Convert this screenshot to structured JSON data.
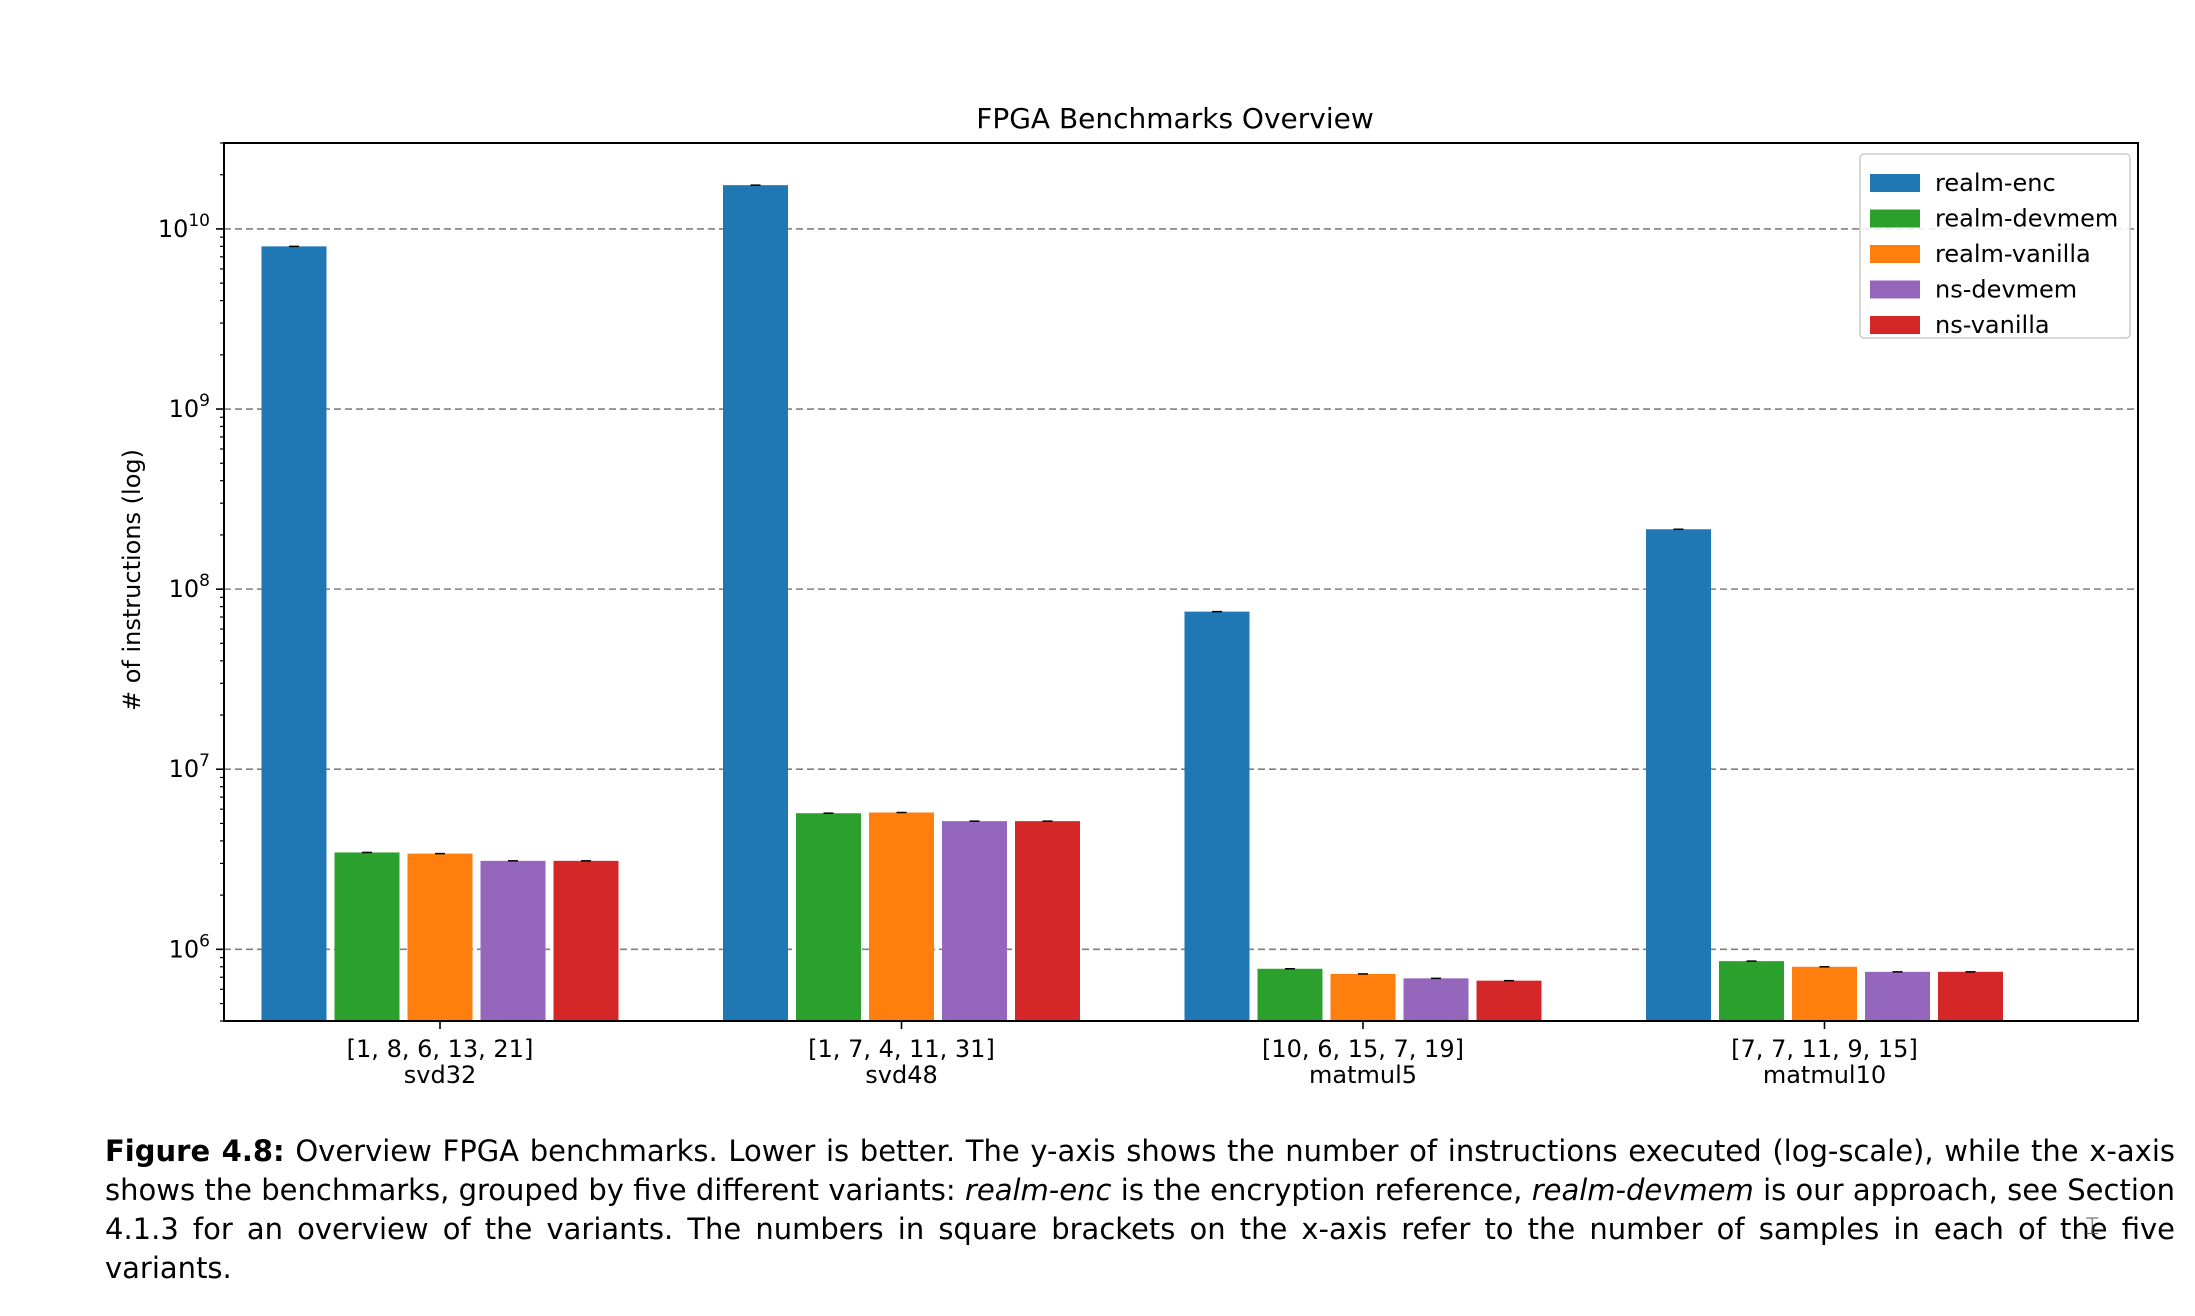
{
  "chart_data": {
    "type": "bar",
    "title": "FPGA Benchmarks Overview",
    "ylabel": "# of instructions (log)",
    "xlabel": "",
    "yscale": "log",
    "ylim": [
      400000,
      30000000000
    ],
    "grid": "y-major dashed",
    "legend_position": "top-right",
    "y_ticks": [
      {
        "value": 1000000,
        "base": "10",
        "exp": "6"
      },
      {
        "value": 10000000,
        "base": "10",
        "exp": "7"
      },
      {
        "value": 100000000,
        "base": "10",
        "exp": "8"
      },
      {
        "value": 1000000000,
        "base": "10",
        "exp": "9"
      },
      {
        "value": 10000000000,
        "base": "10",
        "exp": "10"
      }
    ],
    "categories": [
      "svd32",
      "svd48",
      "matmul5",
      "matmul10"
    ],
    "sample_counts": [
      "[1, 8, 6, 13, 21]",
      "[1, 7, 4, 11, 31]",
      "[10, 6, 15, 7, 19]",
      "[7, 7, 11, 9, 15]"
    ],
    "series": [
      {
        "name": "realm-enc",
        "color": "#1f77b4",
        "values": [
          8000000000,
          17500000000,
          75000000,
          215000000
        ]
      },
      {
        "name": "realm-devmem",
        "color": "#2ca02c",
        "values": [
          3450000,
          5700000,
          780000,
          860000
        ]
      },
      {
        "name": "realm-vanilla",
        "color": "#ff7f0e",
        "values": [
          3400000,
          5750000,
          730000,
          800000
        ]
      },
      {
        "name": "ns-devmem",
        "color": "#9467bd",
        "values": [
          3100000,
          5150000,
          690000,
          750000
        ]
      },
      {
        "name": "ns-vanilla",
        "color": "#d62728",
        "values": [
          3100000,
          5150000,
          670000,
          750000
        ]
      }
    ]
  },
  "caption": {
    "label": "Figure 4.8:",
    "text_1": " Overview FPGA benchmarks. Lower is better. The y-axis shows the number of instructions executed (log-scale), while the x-axis shows the benchmarks, grouped by five different variants: ",
    "variant_enc": "realm-enc",
    "text_2": " is the encryption reference, ",
    "variant_devmem": "realm-devmem",
    "text_3": " is our approach, see Section 4.1.3 for an overview of the variants. The numbers in square brackets on the x-axis refer to the number of samples in each of the five variants."
  }
}
